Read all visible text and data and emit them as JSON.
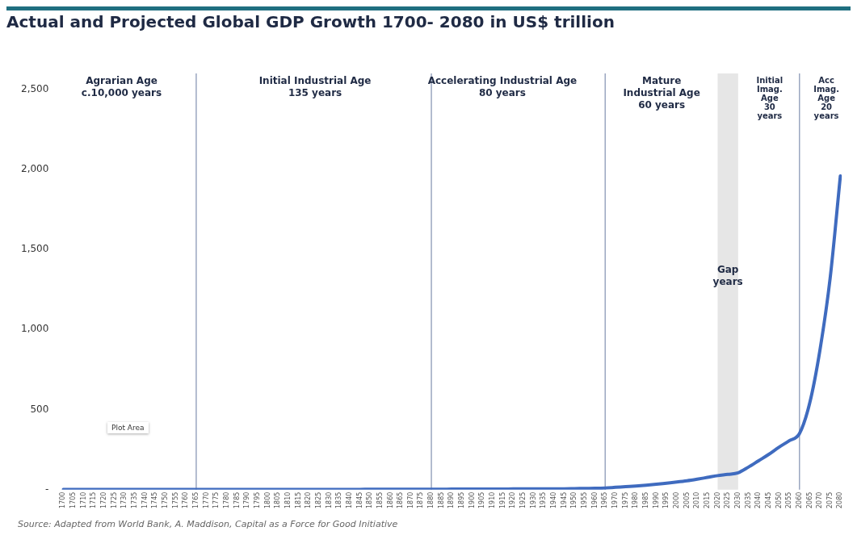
{
  "chart_data": {
    "type": "line",
    "title": "Actual and Projected Global GDP Growth 1700- 2080 in US$ trillion",
    "categories": [
      "1700",
      "1705",
      "1710",
      "1715",
      "1720",
      "1725",
      "1730",
      "1735",
      "1740",
      "1745",
      "1750",
      "1755",
      "1760",
      "1765",
      "1770",
      "1775",
      "1780",
      "1785",
      "1790",
      "1795",
      "1800",
      "1805",
      "1810",
      "1815",
      "1820",
      "1825",
      "1830",
      "1835",
      "1840",
      "1845",
      "1850",
      "1855",
      "1860",
      "1865",
      "1870",
      "1875",
      "1880",
      "1885",
      "1890",
      "1895",
      "1900",
      "1905",
      "1910",
      "1915",
      "1920",
      "1925",
      "1930",
      "1935",
      "1940",
      "1945",
      "1950",
      "1955",
      "1960",
      "1965",
      "1970",
      "1975",
      "1980",
      "1985",
      "1990",
      "1995",
      "2000",
      "2005",
      "2010",
      "2015",
      "2020",
      "2025",
      "2030",
      "2035",
      "2040",
      "2045",
      "2050",
      "2055",
      "2060",
      "2065",
      "2070",
      "2075",
      "2080"
    ],
    "series": [
      {
        "color": "#3f6bbf",
        "values": [
          1,
          1,
          1,
          1,
          1,
          1,
          1,
          1,
          1,
          1,
          1,
          1,
          1,
          1,
          1,
          1,
          1,
          1,
          1,
          1,
          1,
          1,
          1,
          1,
          1,
          1,
          1,
          1,
          1,
          1,
          2,
          2,
          2,
          2,
          2,
          2,
          2,
          2,
          3,
          3,
          3,
          3,
          3,
          3,
          4,
          4,
          4,
          4,
          5,
          5,
          6,
          7,
          8,
          10,
          14,
          18,
          22,
          27,
          33,
          40,
          47,
          55,
          65,
          76,
          87,
          95,
          105,
          140,
          180,
          220,
          265,
          305,
          350,
          540,
          870,
          1320,
          1960
        ]
      }
    ],
    "ylim": [
      0,
      2600
    ],
    "yticks": [
      {
        "value": 0,
        "label": "-"
      },
      {
        "value": 500,
        "label": "500"
      },
      {
        "value": 1000,
        "label": "1,000"
      },
      {
        "value": 1500,
        "label": "1,500"
      },
      {
        "value": 2000,
        "label": "2,000"
      },
      {
        "value": 2500,
        "label": "2,500"
      }
    ],
    "grid": false,
    "legend": false,
    "marker": "none",
    "line_style": "solid",
    "ref_lines": [
      {
        "axis": "x",
        "value": "1765",
        "color": "#9aa6c0"
      },
      {
        "axis": "x",
        "value": "1880",
        "color": "#9aa6c0"
      },
      {
        "axis": "x",
        "value": "1965",
        "color": "#9aa6c0"
      },
      {
        "axis": "x",
        "value": "2060",
        "color": "#9aa6c0"
      }
    ],
    "bands": [
      {
        "axis": "x",
        "from": "2020",
        "to": "2030",
        "color": "#e6e6e6",
        "label": "Gap\nyears"
      }
    ],
    "annotations": [
      "Agrarian Age\nc.10,000 years",
      "Initial Industrial Age\n135 years",
      "Accelerating Industrial Age\n80 years",
      "Mature\nIndustrial Age\n60 years",
      "Initial\nImag.\nAge\n30\nyears",
      "Acc\nImag.\nAge\n20\nyears",
      "Plot Area",
      "Source: Adapted from World Bank, A. Maddison, Capital as a Force for Good Initiative"
    ]
  }
}
